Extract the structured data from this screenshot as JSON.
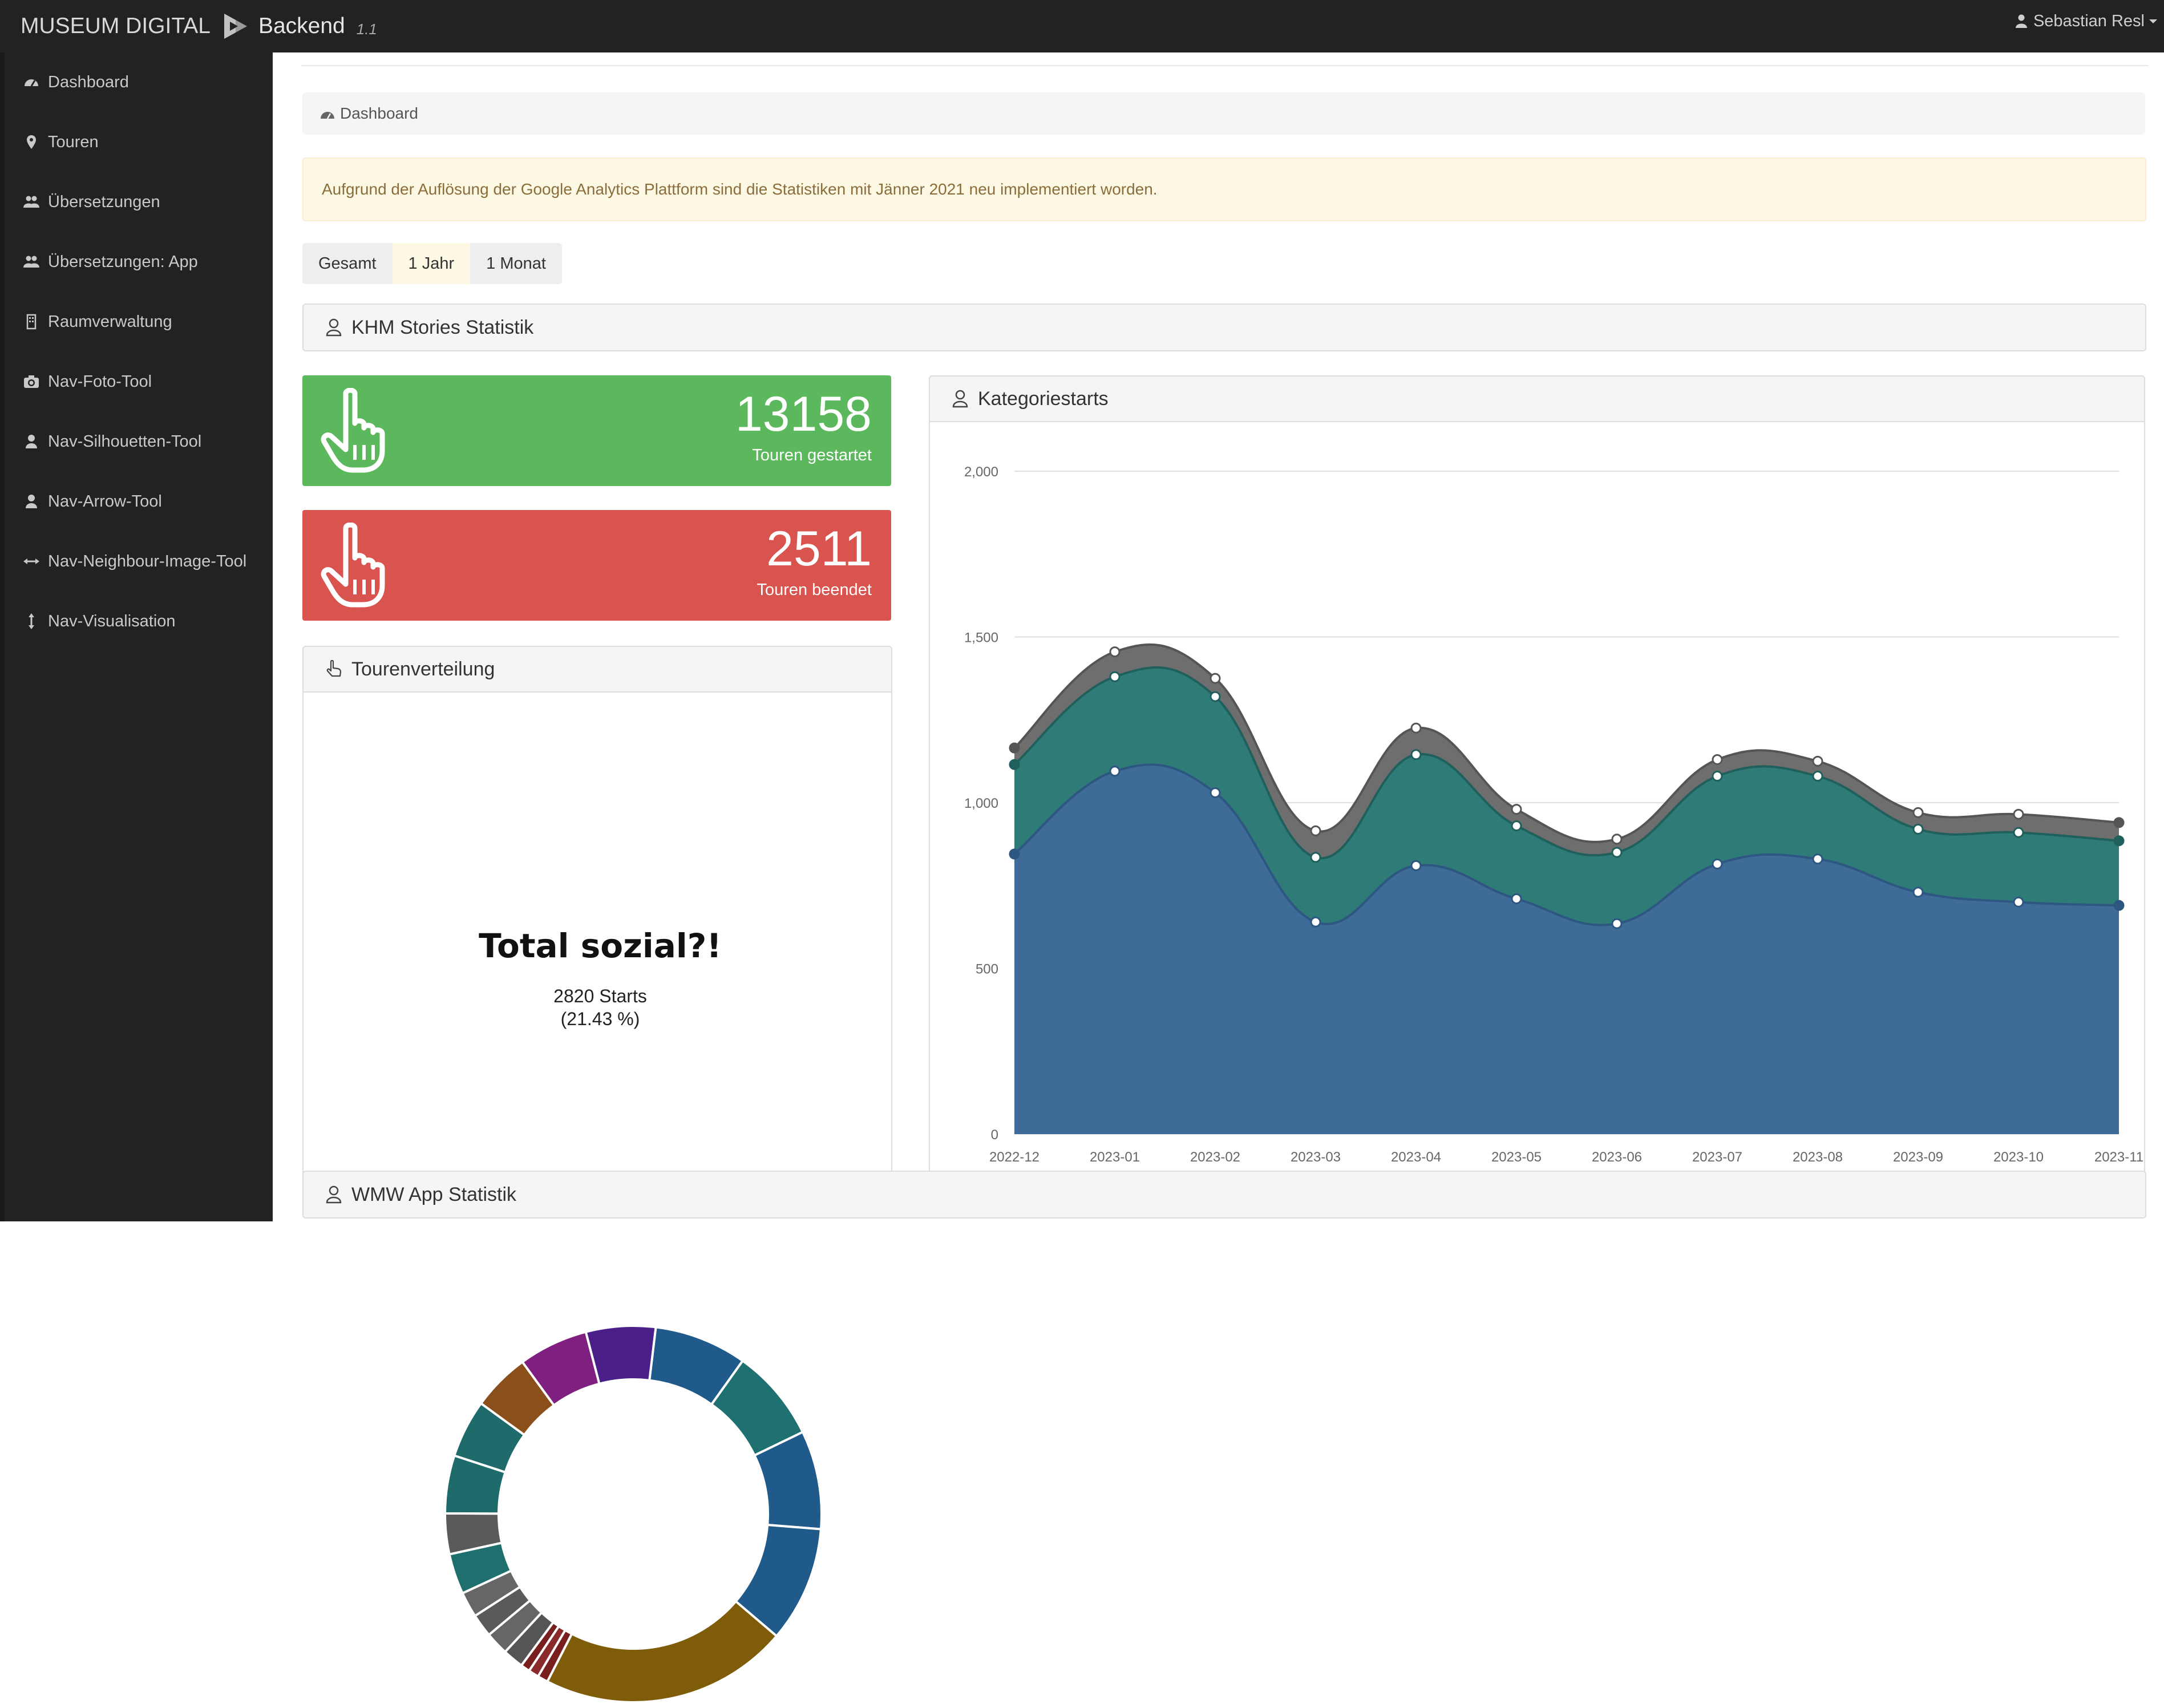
{
  "header": {
    "brand": "MUSEUM DIGITAL",
    "backend": "Backend",
    "version": "1.1",
    "user": "Sebastian Resl"
  },
  "sidebar": {
    "items": [
      {
        "label": "Dashboard",
        "icon": "dashboard-icon"
      },
      {
        "label": "Touren",
        "icon": "map-marker-icon"
      },
      {
        "label": "Übersetzungen",
        "icon": "users-icon"
      },
      {
        "label": "Übersetzungen: App",
        "icon": "users-icon"
      },
      {
        "label": "Raumverwaltung",
        "icon": "building-icon"
      },
      {
        "label": "Nav-Foto-Tool",
        "icon": "camera-icon"
      },
      {
        "label": "Nav-Silhouetten-Tool",
        "icon": "user-icon"
      },
      {
        "label": "Nav-Arrow-Tool",
        "icon": "user-icon"
      },
      {
        "label": "Nav-Neighbour-Image-Tool",
        "icon": "arrows-horizontal-icon"
      },
      {
        "label": "Nav-Visualisation",
        "icon": "arrows-vertical-icon"
      }
    ]
  },
  "breadcrumb": {
    "label": "Dashboard"
  },
  "alert": {
    "text": "Aufgrund der Auflösung der Google Analytics Plattform sind die Statistiken mit Jänner 2021 neu implementiert worden."
  },
  "range_buttons": {
    "all": "Gesamt",
    "year": "1 Jahr",
    "month": "1 Monat",
    "active": "1 Jahr"
  },
  "sections": {
    "khm": "KHM Stories Statistik",
    "wmw": "WMW App Statistik",
    "distribution": "Tourenverteilung",
    "category": "Kategoriestarts"
  },
  "stats": {
    "started": {
      "value": "13158",
      "label": "Touren gestartet"
    },
    "finished": {
      "value": "2511",
      "label": "Touren beendet"
    }
  },
  "colors": {
    "green": "#5cb85c",
    "red": "#d9534f",
    "blue_area": "#3e6b98",
    "teal_area": "#2e7b78",
    "gray_area": "#6e6e6e"
  },
  "chart_data": [
    {
      "type": "pie",
      "title": "Total sozial?!",
      "center_value": "2820 Starts",
      "center_percent": "(21.43 %)",
      "slices": [
        {
          "value": 8.0,
          "color": "#1f5a8a"
        },
        {
          "value": 8.0,
          "color": "#1f7070"
        },
        {
          "value": 8.5,
          "color": "#1f5a8a"
        },
        {
          "value": 10.0,
          "color": "#1f5a8a"
        },
        {
          "value": 21.43,
          "color": "#7f5c0a"
        },
        {
          "value": 0.9,
          "color": "#7a1f1f"
        },
        {
          "value": 0.9,
          "color": "#8a2a2a"
        },
        {
          "value": 0.8,
          "color": "#7a1f1f"
        },
        {
          "value": 1.8,
          "color": "#555555"
        },
        {
          "value": 2.0,
          "color": "#666666"
        },
        {
          "value": 2.0,
          "color": "#5a5a5a"
        },
        {
          "value": 2.2,
          "color": "#666666"
        },
        {
          "value": 3.5,
          "color": "#1f6f6f"
        },
        {
          "value": 3.5,
          "color": "#5a5a5a"
        },
        {
          "value": 5.0,
          "color": "#1f6a6a"
        },
        {
          "value": 5.0,
          "color": "#1f6a6a"
        },
        {
          "value": 5.0,
          "color": "#8a4f1a"
        },
        {
          "value": 6.0,
          "color": "#7f1f7f"
        },
        {
          "value": 6.0,
          "color": "#4a1f8a"
        }
      ]
    },
    {
      "type": "area",
      "x": [
        "2022-12",
        "2023-01",
        "2023-02",
        "2023-03",
        "2023-04",
        "2023-05",
        "2023-06",
        "2023-07",
        "2023-08",
        "2023-09",
        "2023-10",
        "2023-11"
      ],
      "ylim": [
        0,
        2000
      ],
      "yticks": [
        "2,000",
        "1,500",
        "1,000",
        "500",
        "0"
      ],
      "ytick_values": [
        2000,
        1500,
        1000,
        500,
        0
      ],
      "stacked_totals": [
        {
          "values": [
            845,
            1095,
            1030,
            640,
            810,
            710,
            635,
            815,
            830,
            730,
            700,
            690
          ],
          "color": "#3e6b98",
          "line": "#2d5680"
        },
        {
          "values": [
            1115,
            1380,
            1320,
            835,
            1145,
            930,
            850,
            1080,
            1080,
            920,
            910,
            885
          ],
          "color": "#2e7b78",
          "line": "#1f5f5c"
        },
        {
          "values": [
            1165,
            1455,
            1375,
            915,
            1225,
            980,
            890,
            1130,
            1125,
            970,
            965,
            940
          ],
          "color": "#6e6e6e",
          "line": "#555555"
        }
      ]
    }
  ]
}
